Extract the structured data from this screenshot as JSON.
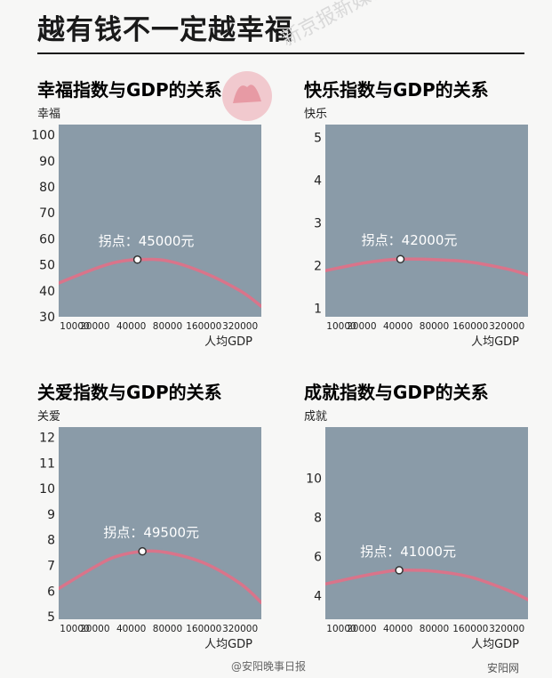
{
  "page": {
    "title": "越有钱不一定越幸福",
    "watermark": "新京报新媒体出品",
    "footer_left": "@安阳晚事日报",
    "footer_right": "安阳网"
  },
  "chart_data": [
    {
      "type": "line",
      "title": "幸福指数与GDP的关系",
      "ylabel": "幸福",
      "xlabel": "人均GDP",
      "x_ticks": [
        "10000",
        "20000",
        "40000",
        "80000",
        "160000",
        "320000"
      ],
      "y_ticks": [
        "100",
        "90",
        "80",
        "70",
        "60",
        "50",
        "40",
        "30"
      ],
      "ylim": [
        30,
        104
      ],
      "x_scale": "log",
      "x": [
        10000,
        20000,
        30000,
        45000,
        80000,
        160000,
        320000,
        480000
      ],
      "y": [
        43,
        48.5,
        51,
        52,
        51.5,
        47,
        40,
        34
      ],
      "annotation": {
        "label": "拐点：45000元",
        "x": 45000,
        "y": 52
      },
      "colors": {
        "plot_bg": "#8a9ba8",
        "line": "#d9748a"
      }
    },
    {
      "type": "line",
      "title": "快乐指数与GDP的关系",
      "ylabel": "快乐",
      "xlabel": "人均GDP",
      "x_ticks": [
        "10000",
        "20000",
        "40000",
        "80000",
        "160000",
        "320000"
      ],
      "y_ticks": [
        "5",
        "4",
        "3",
        "2",
        "1"
      ],
      "ylim": [
        0.8,
        5.3
      ],
      "x_scale": "log",
      "x": [
        10000,
        20000,
        30000,
        42000,
        80000,
        160000,
        320000,
        480000
      ],
      "y": [
        1.88,
        2.05,
        2.12,
        2.15,
        2.14,
        2.08,
        1.92,
        1.78
      ],
      "annotation": {
        "label": "拐点：42000元",
        "x": 42000,
        "y": 2.15
      },
      "colors": {
        "plot_bg": "#8a9ba8",
        "line": "#d9748a"
      }
    },
    {
      "type": "line",
      "title": "关爱指数与GDP的关系",
      "ylabel": "关爱",
      "xlabel": "人均GDP",
      "x_ticks": [
        "10000",
        "20000",
        "40000",
        "80000",
        "160000",
        "320000"
      ],
      "y_ticks": [
        "12",
        "11",
        "10",
        "9",
        "8",
        "7",
        "6",
        "5"
      ],
      "ylim": [
        4.9,
        12.4
      ],
      "x_scale": "log",
      "x": [
        10000,
        20000,
        30000,
        49500,
        80000,
        160000,
        320000,
        480000
      ],
      "y": [
        6.1,
        6.95,
        7.35,
        7.55,
        7.5,
        7.1,
        6.3,
        5.55
      ],
      "annotation": {
        "label": "拐点：49500元",
        "x": 49500,
        "y": 7.55
      },
      "colors": {
        "plot_bg": "#8a9ba8",
        "line": "#d9748a"
      }
    },
    {
      "type": "line",
      "title": "成就指数与GDP的关系",
      "ylabel": "成就",
      "xlabel": "人均GDP",
      "x_ticks": [
        "10000",
        "20000",
        "40000",
        "80000",
        "160000",
        "320000"
      ],
      "y_ticks": [
        "10",
        "8",
        "6",
        "4"
      ],
      "ylim": [
        2.8,
        12.6
      ],
      "x_scale": "log",
      "x": [
        10000,
        20000,
        30000,
        41000,
        80000,
        160000,
        320000,
        480000
      ],
      "y": [
        4.6,
        5.0,
        5.2,
        5.3,
        5.25,
        4.95,
        4.3,
        3.8
      ],
      "annotation": {
        "label": "拐点：41000元",
        "x": 41000,
        "y": 5.3
      },
      "colors": {
        "plot_bg": "#8a9ba8",
        "line": "#d9748a"
      }
    }
  ]
}
